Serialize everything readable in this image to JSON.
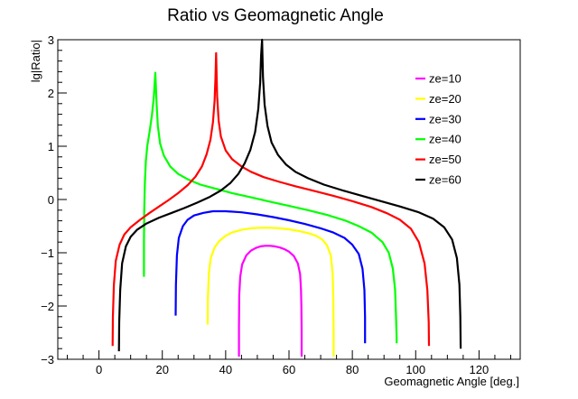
{
  "chart_data": {
    "type": "line",
    "title": "Ratio vs Geomagnetic Angle",
    "xlabel": "Geomagnetic Angle [deg.]",
    "ylabel": "lg|Ratio|",
    "xlim": [
      -13,
      133
    ],
    "ylim": [
      -3,
      3
    ],
    "x_ticks": [
      0,
      20,
      40,
      60,
      80,
      100,
      120
    ],
    "y_ticks": [
      -3,
      -2,
      -1,
      0,
      1,
      2,
      3
    ],
    "x_tick_labels": [
      "0",
      "20",
      "40",
      "60",
      "80",
      "100",
      "120"
    ],
    "y_tick_labels": [
      "−3",
      "−2",
      "−1",
      "0",
      "1",
      "2",
      "3"
    ],
    "grid": false,
    "legend_position": "top-right",
    "series": [
      {
        "name": "ze=10",
        "color": "#ff00ff",
        "x": [
          44.2,
          44.2,
          44.3,
          44.6,
          45.2,
          46.5,
          48.0,
          49.5,
          51.0,
          52.5,
          54.0,
          55.5,
          57.0,
          58.5,
          60.0,
          61.5,
          62.8,
          63.5,
          63.8,
          63.9,
          64.0,
          64.0
        ],
        "y": [
          -2.95,
          -2.4,
          -1.8,
          -1.45,
          -1.22,
          -1.05,
          -0.96,
          -0.91,
          -0.88,
          -0.87,
          -0.87,
          -0.88,
          -0.9,
          -0.93,
          -0.98,
          -1.06,
          -1.2,
          -1.4,
          -1.7,
          -2.0,
          -2.5,
          -2.95
        ]
      },
      {
        "name": "ze=20",
        "color": "#ffff00",
        "x": [
          34.3,
          34.4,
          34.7,
          35.3,
          36.5,
          38.0,
          40.0,
          42.0,
          45.0,
          48.0,
          51.0,
          54.0,
          57.0,
          60.0,
          63.0,
          66.0,
          68.5,
          70.5,
          72.0,
          73.2,
          73.8,
          74.0,
          74.1,
          74.1
        ],
        "y": [
          -2.35,
          -1.85,
          -1.38,
          -1.1,
          -0.9,
          -0.78,
          -0.68,
          -0.62,
          -0.57,
          -0.54,
          -0.53,
          -0.53,
          -0.54,
          -0.56,
          -0.59,
          -0.63,
          -0.68,
          -0.75,
          -0.86,
          -1.05,
          -1.4,
          -1.9,
          -2.5,
          -2.95
        ]
      },
      {
        "name": "ze=30",
        "color": "#0000ff",
        "x": [
          24.2,
          24.3,
          24.6,
          25.2,
          26.5,
          28.0,
          30.0,
          33.0,
          36.0,
          40.0,
          45.0,
          50.0,
          55.0,
          60.0,
          65.0,
          70.0,
          74.0,
          77.5,
          80.0,
          82.0,
          83.2,
          83.8,
          84.0,
          84.0
        ],
        "y": [
          -2.18,
          -1.6,
          -1.05,
          -0.72,
          -0.5,
          -0.38,
          -0.3,
          -0.25,
          -0.22,
          -0.22,
          -0.24,
          -0.28,
          -0.33,
          -0.39,
          -0.46,
          -0.54,
          -0.62,
          -0.72,
          -0.85,
          -1.02,
          -1.3,
          -1.7,
          -2.2,
          -2.7
        ]
      },
      {
        "name": "ze=40",
        "color": "#00ff00",
        "x": [
          14.2,
          14.2,
          14.3,
          14.5,
          14.8,
          15.3,
          16.0,
          16.7,
          17.3,
          17.8,
          18.2,
          18.6,
          19.3,
          20.5,
          22.5,
          25.0,
          28.0,
          32.0,
          37.0,
          42.0,
          48.0,
          54.0,
          60.0,
          66.0,
          72.0,
          78.0,
          82.0,
          86.0,
          89.5,
          91.5,
          92.8,
          93.5,
          93.8,
          94.0,
          94.0
        ],
        "y": [
          -1.45,
          -0.8,
          -0.22,
          0.3,
          0.72,
          1.02,
          1.28,
          1.58,
          1.92,
          2.38,
          1.8,
          1.38,
          1.05,
          0.82,
          0.62,
          0.48,
          0.38,
          0.28,
          0.2,
          0.12,
          0.04,
          -0.04,
          -0.12,
          -0.2,
          -0.29,
          -0.4,
          -0.5,
          -0.62,
          -0.8,
          -1.0,
          -1.3,
          -1.7,
          -2.2,
          -2.6,
          -2.7
        ]
      },
      {
        "name": "ze=50",
        "color": "#ff0000",
        "x": [
          4.3,
          4.4,
          4.7,
          5.3,
          6.5,
          8.0,
          10.0,
          13.0,
          16.0,
          19.0,
          22.0,
          25.0,
          28.0,
          30.5,
          32.5,
          34.0,
          35.2,
          36.0,
          36.5,
          36.8,
          37.0,
          37.3,
          37.8,
          38.5,
          40.0,
          42.0,
          45.0,
          48.0,
          52.0,
          57.0,
          62.0,
          68.0,
          74.0,
          80.0,
          86.0,
          91.0,
          95.0,
          98.5,
          101.0,
          102.8,
          103.7,
          104.1,
          104.2
        ],
        "y": [
          -2.75,
          -2.2,
          -1.6,
          -1.15,
          -0.85,
          -0.66,
          -0.52,
          -0.38,
          -0.25,
          -0.13,
          -0.01,
          0.12,
          0.27,
          0.43,
          0.62,
          0.85,
          1.12,
          1.45,
          1.85,
          2.3,
          2.75,
          1.95,
          1.48,
          1.18,
          0.92,
          0.76,
          0.62,
          0.52,
          0.42,
          0.33,
          0.25,
          0.16,
          0.07,
          -0.03,
          -0.14,
          -0.26,
          -0.38,
          -0.55,
          -0.8,
          -1.2,
          -1.7,
          -2.3,
          -2.75
        ]
      },
      {
        "name": "ze=60",
        "color": "#000000",
        "x": [
          6.3,
          6.4,
          6.7,
          7.3,
          8.5,
          10.0,
          12.0,
          15.0,
          19.0,
          23.0,
          27.0,
          31.0,
          35.0,
          38.5,
          41.5,
          44.0,
          46.0,
          47.8,
          49.3,
          50.3,
          50.9,
          51.2,
          51.5,
          51.8,
          52.3,
          53.2,
          54.5,
          56.5,
          59.0,
          62.0,
          66.0,
          71.0,
          77.0,
          83.0,
          89.0,
          95.0,
          101.0,
          105.5,
          109.0,
          111.5,
          113.0,
          113.8,
          114.1,
          114.2
        ],
        "y": [
          -2.85,
          -2.3,
          -1.7,
          -1.2,
          -0.88,
          -0.7,
          -0.57,
          -0.45,
          -0.34,
          -0.25,
          -0.16,
          -0.06,
          0.05,
          0.17,
          0.31,
          0.48,
          0.68,
          0.93,
          1.27,
          1.7,
          2.2,
          2.7,
          3.0,
          2.3,
          1.78,
          1.38,
          1.07,
          0.84,
          0.66,
          0.52,
          0.4,
          0.28,
          0.17,
          0.07,
          -0.03,
          -0.13,
          -0.24,
          -0.36,
          -0.52,
          -0.75,
          -1.1,
          -1.6,
          -2.2,
          -2.8
        ]
      }
    ]
  }
}
